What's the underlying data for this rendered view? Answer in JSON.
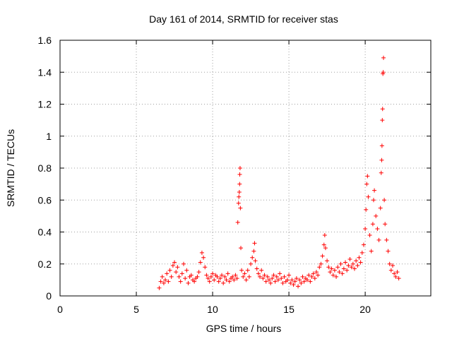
{
  "chart_data": {
    "type": "scatter",
    "title": "Day 161 of 2014, SRMTID for receiver stas",
    "xlabel": "GPS time / hours",
    "ylabel": "SRMTID / TECUs",
    "xlim": [
      0,
      24.3
    ],
    "ylim": [
      0,
      1.6
    ],
    "xticks": [
      0,
      5,
      10,
      15,
      20
    ],
    "yticks": [
      0,
      0.2,
      0.4,
      0.6,
      0.8,
      1,
      1.2,
      1.4,
      1.6
    ],
    "xtick_labels": [
      "0",
      "5",
      "10",
      "15",
      "20"
    ],
    "ytick_labels": [
      "0",
      "0.2",
      "0.4",
      "0.6",
      "0.8",
      "1",
      "1.2",
      "1.4",
      "1.6"
    ],
    "grid": true,
    "marker": "+",
    "color": "#ff0000",
    "series": [
      {
        "name": "stas",
        "points": [
          [
            6.5,
            0.05
          ],
          [
            6.6,
            0.09
          ],
          [
            6.7,
            0.12
          ],
          [
            6.8,
            0.08
          ],
          [
            6.9,
            0.1
          ],
          [
            7.0,
            0.14
          ],
          [
            7.1,
            0.09
          ],
          [
            7.2,
            0.16
          ],
          [
            7.3,
            0.12
          ],
          [
            7.4,
            0.19
          ],
          [
            7.5,
            0.21
          ],
          [
            7.6,
            0.15
          ],
          [
            7.7,
            0.18
          ],
          [
            7.8,
            0.12
          ],
          [
            7.9,
            0.09
          ],
          [
            8.0,
            0.14
          ],
          [
            8.1,
            0.2
          ],
          [
            8.2,
            0.11
          ],
          [
            8.3,
            0.16
          ],
          [
            8.4,
            0.08
          ],
          [
            8.5,
            0.12
          ],
          [
            8.6,
            0.13
          ],
          [
            8.7,
            0.1
          ],
          [
            8.8,
            0.09
          ],
          [
            8.9,
            0.11
          ],
          [
            9.0,
            0.12
          ],
          [
            9.1,
            0.15
          ],
          [
            9.2,
            0.21
          ],
          [
            9.3,
            0.27
          ],
          [
            9.4,
            0.24
          ],
          [
            9.5,
            0.18
          ],
          [
            9.6,
            0.13
          ],
          [
            9.7,
            0.11
          ],
          [
            9.8,
            0.09
          ],
          [
            9.9,
            0.12
          ],
          [
            10.0,
            0.14
          ],
          [
            10.1,
            0.1
          ],
          [
            10.2,
            0.13
          ],
          [
            10.3,
            0.12
          ],
          [
            10.4,
            0.09
          ],
          [
            10.5,
            0.11
          ],
          [
            10.6,
            0.13
          ],
          [
            10.7,
            0.08
          ],
          [
            10.8,
            0.12
          ],
          [
            10.9,
            0.1
          ],
          [
            11.0,
            0.14
          ],
          [
            11.1,
            0.09
          ],
          [
            11.2,
            0.11
          ],
          [
            11.3,
            0.12
          ],
          [
            11.4,
            0.1
          ],
          [
            11.5,
            0.13
          ],
          [
            11.6,
            0.11
          ],
          [
            11.65,
            0.46
          ],
          [
            11.7,
            0.58
          ],
          [
            11.72,
            0.62
          ],
          [
            11.75,
            0.65
          ],
          [
            11.77,
            0.7
          ],
          [
            11.78,
            0.76
          ],
          [
            11.8,
            0.8
          ],
          [
            11.82,
            0.55
          ],
          [
            11.85,
            0.3
          ],
          [
            11.9,
            0.16
          ],
          [
            12.0,
            0.12
          ],
          [
            12.1,
            0.14
          ],
          [
            12.2,
            0.1
          ],
          [
            12.3,
            0.16
          ],
          [
            12.4,
            0.12
          ],
          [
            12.5,
            0.2
          ],
          [
            12.6,
            0.24
          ],
          [
            12.7,
            0.28
          ],
          [
            12.75,
            0.33
          ],
          [
            12.8,
            0.22
          ],
          [
            12.9,
            0.17
          ],
          [
            13.0,
            0.14
          ],
          [
            13.1,
            0.12
          ],
          [
            13.2,
            0.16
          ],
          [
            13.3,
            0.11
          ],
          [
            13.4,
            0.13
          ],
          [
            13.5,
            0.09
          ],
          [
            13.6,
            0.12
          ],
          [
            13.7,
            0.1
          ],
          [
            13.8,
            0.08
          ],
          [
            13.9,
            0.11
          ],
          [
            14.0,
            0.13
          ],
          [
            14.1,
            0.09
          ],
          [
            14.2,
            0.12
          ],
          [
            14.3,
            0.1
          ],
          [
            14.4,
            0.14
          ],
          [
            14.5,
            0.11
          ],
          [
            14.6,
            0.08
          ],
          [
            14.7,
            0.12
          ],
          [
            14.8,
            0.09
          ],
          [
            14.9,
            0.1
          ],
          [
            15.0,
            0.13
          ],
          [
            15.1,
            0.08
          ],
          [
            15.2,
            0.1
          ],
          [
            15.3,
            0.07
          ],
          [
            15.4,
            0.09
          ],
          [
            15.5,
            0.11
          ],
          [
            15.6,
            0.06
          ],
          [
            15.7,
            0.1
          ],
          [
            15.8,
            0.08
          ],
          [
            15.9,
            0.12
          ],
          [
            16.0,
            0.09
          ],
          [
            16.1,
            0.11
          ],
          [
            16.2,
            0.1
          ],
          [
            16.3,
            0.13
          ],
          [
            16.4,
            0.09
          ],
          [
            16.5,
            0.12
          ],
          [
            16.6,
            0.14
          ],
          [
            16.7,
            0.11
          ],
          [
            16.8,
            0.15
          ],
          [
            16.9,
            0.13
          ],
          [
            17.0,
            0.18
          ],
          [
            17.1,
            0.2
          ],
          [
            17.2,
            0.25
          ],
          [
            17.3,
            0.32
          ],
          [
            17.35,
            0.38
          ],
          [
            17.4,
            0.3
          ],
          [
            17.5,
            0.22
          ],
          [
            17.6,
            0.18
          ],
          [
            17.7,
            0.15
          ],
          [
            17.8,
            0.17
          ],
          [
            17.9,
            0.13
          ],
          [
            18.0,
            0.16
          ],
          [
            18.1,
            0.12
          ],
          [
            18.2,
            0.18
          ],
          [
            18.3,
            0.15
          ],
          [
            18.4,
            0.2
          ],
          [
            18.5,
            0.14
          ],
          [
            18.6,
            0.17
          ],
          [
            18.7,
            0.21
          ],
          [
            18.8,
            0.16
          ],
          [
            18.9,
            0.19
          ],
          [
            19.0,
            0.23
          ],
          [
            19.1,
            0.18
          ],
          [
            19.2,
            0.2
          ],
          [
            19.3,
            0.17
          ],
          [
            19.4,
            0.22
          ],
          [
            19.5,
            0.19
          ],
          [
            19.6,
            0.24
          ],
          [
            19.7,
            0.21
          ],
          [
            19.8,
            0.27
          ],
          [
            19.9,
            0.32
          ],
          [
            20.0,
            0.42
          ],
          [
            20.05,
            0.54
          ],
          [
            20.1,
            0.7
          ],
          [
            20.15,
            0.75
          ],
          [
            20.2,
            0.62
          ],
          [
            20.3,
            0.38
          ],
          [
            20.4,
            0.28
          ],
          [
            20.5,
            0.45
          ],
          [
            20.55,
            0.6
          ],
          [
            20.6,
            0.66
          ],
          [
            20.7,
            0.5
          ],
          [
            20.8,
            0.42
          ],
          [
            20.9,
            0.35
          ],
          [
            21.0,
            0.55
          ],
          [
            21.05,
            0.77
          ],
          [
            21.08,
            0.85
          ],
          [
            21.1,
            0.94
          ],
          [
            21.12,
            1.1
          ],
          [
            21.14,
            1.17
          ],
          [
            21.16,
            1.39
          ],
          [
            21.18,
            1.4
          ],
          [
            21.2,
            1.49
          ],
          [
            21.25,
            0.6
          ],
          [
            21.3,
            0.45
          ],
          [
            21.4,
            0.35
          ],
          [
            21.5,
            0.28
          ],
          [
            21.6,
            0.2
          ],
          [
            21.7,
            0.16
          ],
          [
            21.8,
            0.19
          ],
          [
            21.9,
            0.14
          ],
          [
            22.0,
            0.12
          ],
          [
            22.1,
            0.15
          ],
          [
            22.2,
            0.11
          ]
        ]
      }
    ]
  }
}
